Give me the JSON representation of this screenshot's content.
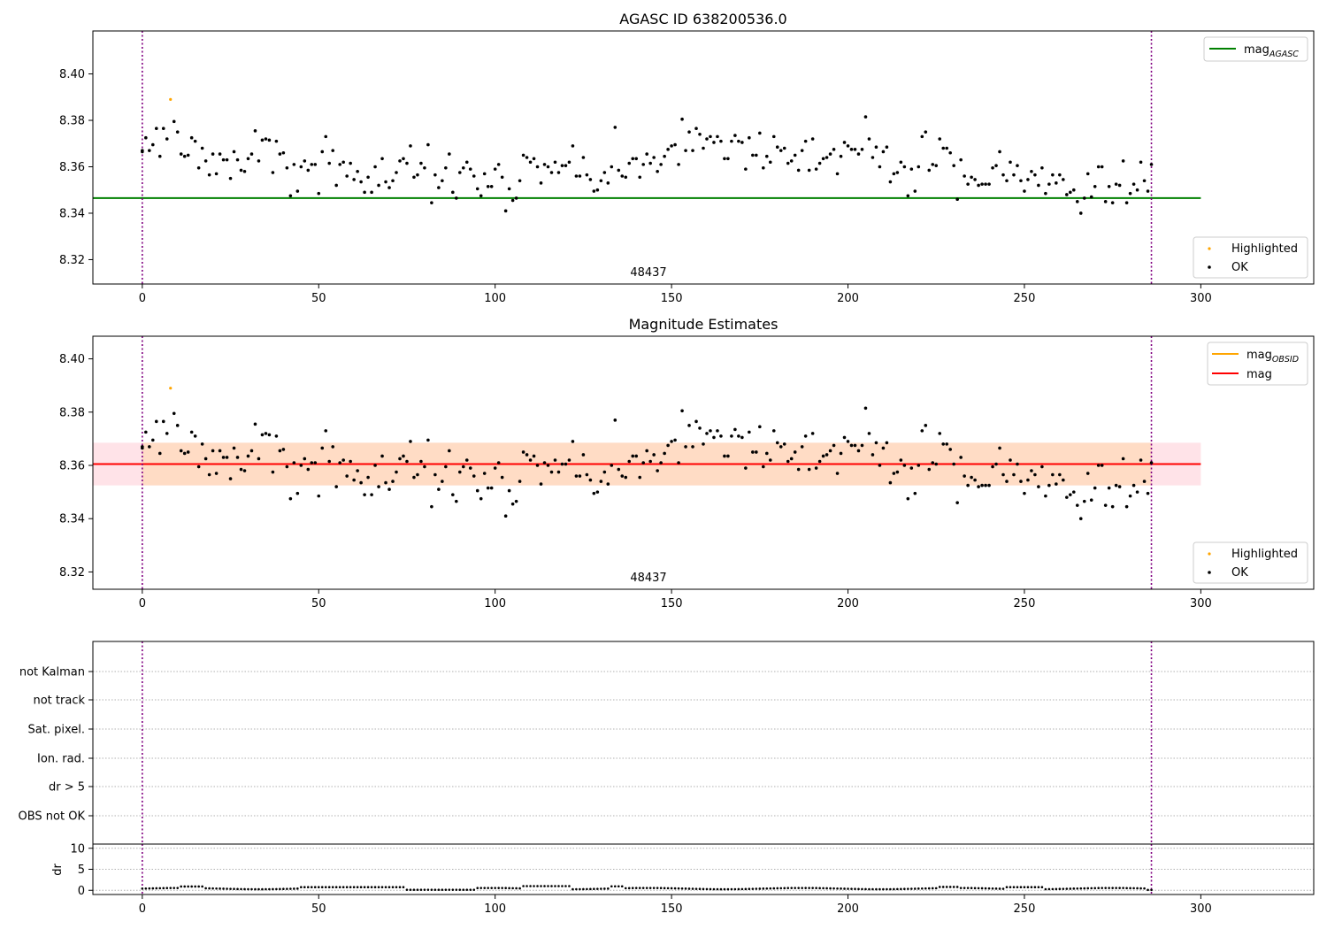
{
  "figure": {
    "colors": {
      "ok": "#000000",
      "highlighted": "#ffa500",
      "agasc_line": "#008000",
      "mag_line": "#ff0000",
      "obsid_line": "#ffa500",
      "band_outer": "#ffc0cb",
      "band_inner": "#ffdab9",
      "vline": "#800080",
      "grid": "#b0b0b0"
    }
  },
  "chart_data": [
    {
      "type": "scatter",
      "title": "AGASC ID 638200536.0",
      "xlim": [
        -14,
        332
      ],
      "ylim": [
        8.3095,
        8.4185
      ],
      "xticks": [
        0,
        50,
        100,
        150,
        200,
        250,
        300
      ],
      "yticks": [
        8.32,
        8.34,
        8.36,
        8.38,
        8.4
      ],
      "ytick_labels": [
        "8.32",
        "8.34",
        "8.36",
        "8.38",
        "8.40"
      ],
      "annotation": {
        "text": "48437",
        "x": 143
      },
      "vlines": [
        0,
        286
      ],
      "hlines": [
        {
          "y": 8.3465,
          "x": [
            -14,
            300
          ],
          "role": "agasc"
        }
      ],
      "legend_lines": [
        {
          "label_main": "mag",
          "label_sub": "AGASC",
          "role": "agasc"
        }
      ],
      "legend_points": [
        {
          "label": "Highlighted",
          "role": "highlighted"
        },
        {
          "label": "OK",
          "role": "ok"
        }
      ],
      "series": [
        {
          "name": "Highlighted",
          "role": "highlighted",
          "x": [
            8
          ],
          "y": [
            8.389
          ]
        },
        {
          "name": "OK",
          "role": "ok"
        }
      ]
    },
    {
      "type": "scatter",
      "title": "Magnitude Estimates",
      "xlim": [
        -14,
        332
      ],
      "ylim": [
        8.3135,
        8.4085
      ],
      "xticks": [
        0,
        50,
        100,
        150,
        200,
        250,
        300
      ],
      "yticks": [
        8.32,
        8.34,
        8.36,
        8.38,
        8.4
      ],
      "ytick_labels": [
        "8.32",
        "8.34",
        "8.36",
        "8.38",
        "8.40"
      ],
      "annotation": {
        "text": "48437",
        "x": 143
      },
      "vlines": [
        0,
        286
      ],
      "bands": [
        {
          "y": [
            8.3525,
            8.3685
          ],
          "x": [
            -14,
            300
          ],
          "role": "outer"
        },
        {
          "y": [
            8.3525,
            8.3685
          ],
          "x": [
            0,
            286
          ],
          "role": "inner"
        }
      ],
      "hlines": [
        {
          "y": 8.3605,
          "x": [
            -14,
            300
          ],
          "role": "mag"
        }
      ],
      "legend_lines": [
        {
          "label_main": "mag",
          "label_sub": "OBSID",
          "role": "obsid"
        },
        {
          "label_main": "mag",
          "label_sub": "",
          "role": "mag"
        }
      ],
      "legend_points": [
        {
          "label": "Highlighted",
          "role": "highlighted"
        },
        {
          "label": "OK",
          "role": "ok"
        }
      ],
      "series": [
        {
          "name": "Highlighted",
          "role": "highlighted",
          "x": [
            8
          ],
          "y": [
            8.389
          ]
        },
        {
          "name": "OK",
          "role": "ok"
        }
      ]
    },
    {
      "type": "scatter",
      "xlim": [
        -14,
        332
      ],
      "category_labels": [
        "not Kalman",
        "not track",
        "Sat. pixel.",
        "Ion. rad.",
        "dr > 5",
        "OBS not OK"
      ],
      "vlines": [
        0,
        286
      ],
      "grid": true
    },
    {
      "type": "scatter",
      "xlim": [
        -14,
        332
      ],
      "ylim": [
        -1,
        11
      ],
      "ylabel": "dr",
      "xticks": [
        0,
        50,
        100,
        150,
        200,
        250,
        300
      ],
      "yticks": [
        0,
        5,
        10
      ],
      "ytick_labels": [
        "0",
        "5",
        "10"
      ],
      "vlines": [
        0,
        286
      ],
      "grid": true,
      "series": [
        {
          "name": "dr",
          "role": "ok"
        }
      ]
    }
  ]
}
